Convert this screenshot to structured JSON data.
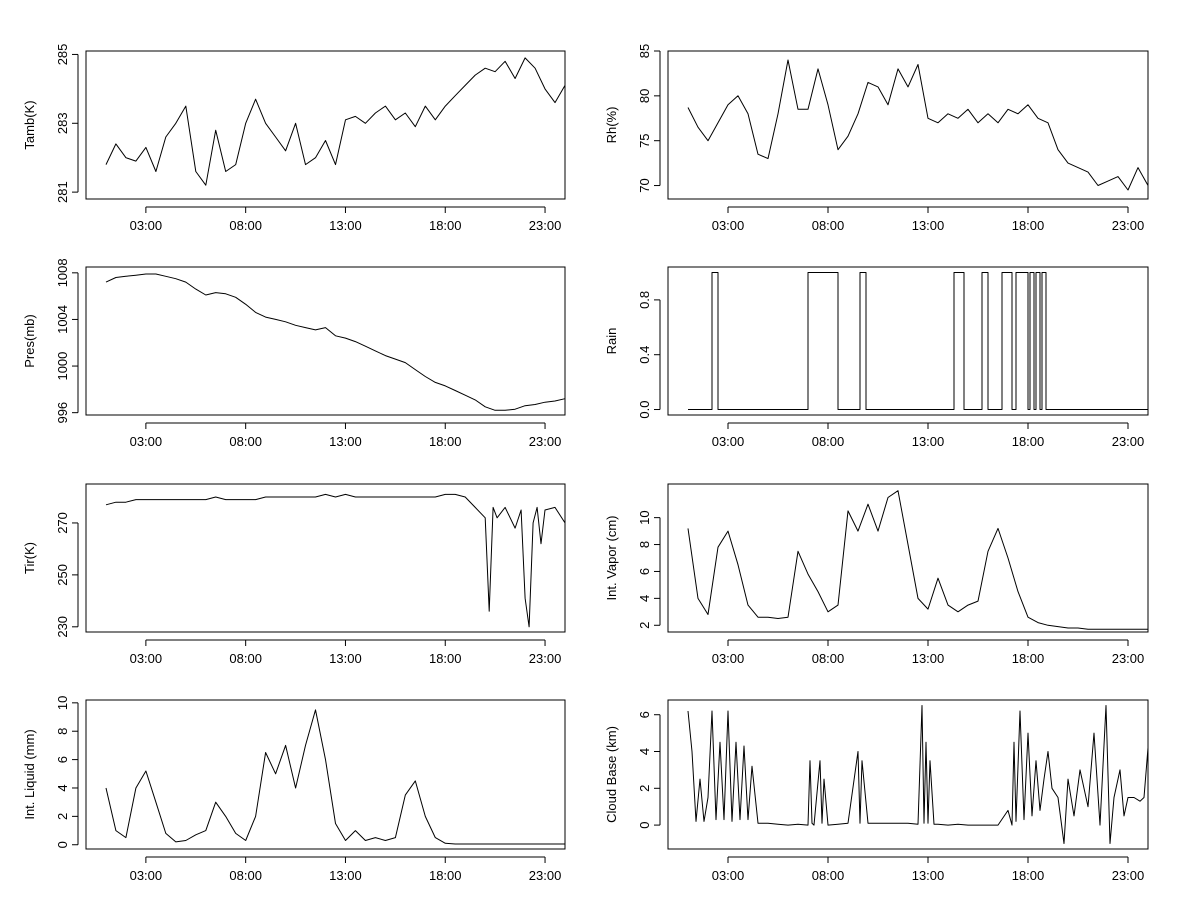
{
  "x_ticks": [
    "03:00",
    "08:00",
    "13:00",
    "18:00",
    "23:00"
  ],
  "chart_data": [
    {
      "type": "line",
      "ylabel": "Tamb(K)",
      "yticks": [
        "281",
        "283",
        "285"
      ],
      "xlim": [
        0,
        24
      ],
      "ylim": [
        280.8,
        285.1
      ],
      "x": [
        1.0,
        1.5,
        2.0,
        2.5,
        3.0,
        3.5,
        4.0,
        4.5,
        5.0,
        5.5,
        6.0,
        6.5,
        7.0,
        7.5,
        8.0,
        8.5,
        9.0,
        9.5,
        10.0,
        10.5,
        11.0,
        11.5,
        12.0,
        12.5,
        13.0,
        13.5,
        14.0,
        14.5,
        15.0,
        15.5,
        16.0,
        16.5,
        17.0,
        17.5,
        18.0,
        18.5,
        19.0,
        19.5,
        20.0,
        20.5,
        21.0,
        21.5,
        22.0,
        22.5,
        23.0,
        23.5,
        24.0
      ],
      "values": [
        281.8,
        282.4,
        282.0,
        281.9,
        282.3,
        281.6,
        282.6,
        283.0,
        283.5,
        281.6,
        281.2,
        282.8,
        281.6,
        281.8,
        283.0,
        283.7,
        283.0,
        282.6,
        282.2,
        283.0,
        281.8,
        282.0,
        282.5,
        281.8,
        283.1,
        283.2,
        283.0,
        283.3,
        283.5,
        283.1,
        283.3,
        282.9,
        283.5,
        283.1,
        283.5,
        283.8,
        284.1,
        284.4,
        284.6,
        284.5,
        284.8,
        284.3,
        284.9,
        284.6,
        284.0,
        283.6,
        284.1
      ]
    },
    {
      "type": "line",
      "ylabel": "Rh(%)",
      "yticks": [
        "70",
        "75",
        "80",
        "85"
      ],
      "xlim": [
        0,
        24
      ],
      "ylim": [
        68.5,
        85
      ],
      "x": [
        1.0,
        1.5,
        2.0,
        2.5,
        3.0,
        3.5,
        4.0,
        4.5,
        5.0,
        5.5,
        6.0,
        6.5,
        7.0,
        7.5,
        8.0,
        8.5,
        9.0,
        9.5,
        10.0,
        10.5,
        11.0,
        11.5,
        12.0,
        12.5,
        13.0,
        13.5,
        14.0,
        14.5,
        15.0,
        15.5,
        16.0,
        16.5,
        17.0,
        17.5,
        18.0,
        18.5,
        19.0,
        19.5,
        20.0,
        20.5,
        21.0,
        21.5,
        22.0,
        22.5,
        23.0,
        23.5,
        24.0
      ],
      "values": [
        78.7,
        76.5,
        75.0,
        77.0,
        79.0,
        80.0,
        78.0,
        73.5,
        73.0,
        78.0,
        84.0,
        78.5,
        78.5,
        83.0,
        79.0,
        74.0,
        75.5,
        78.0,
        81.5,
        81.0,
        79.0,
        83.0,
        81.0,
        83.5,
        77.5,
        77.0,
        78.0,
        77.5,
        78.5,
        77.0,
        78.0,
        77.0,
        78.5,
        78.0,
        79.0,
        77.5,
        77.0,
        74.0,
        72.5,
        72.0,
        71.5,
        70.0,
        70.5,
        71.0,
        69.5,
        72.0,
        70.0
      ]
    },
    {
      "type": "line",
      "ylabel": "Pres(mb)",
      "yticks": [
        "996",
        "1000",
        "1004",
        "1008"
      ],
      "xlim": [
        0,
        24
      ],
      "ylim": [
        995.8,
        1008.5
      ],
      "x": [
        1.0,
        1.5,
        2.0,
        2.5,
        3.0,
        3.5,
        4.0,
        4.5,
        5.0,
        5.5,
        6.0,
        6.5,
        7.0,
        7.5,
        8.0,
        8.5,
        9.0,
        9.5,
        10.0,
        10.5,
        11.0,
        11.5,
        12.0,
        12.5,
        13.0,
        13.5,
        14.0,
        14.5,
        15.0,
        15.5,
        16.0,
        16.5,
        17.0,
        17.5,
        18.0,
        18.5,
        19.0,
        19.5,
        20.0,
        20.5,
        21.0,
        21.5,
        22.0,
        22.5,
        23.0,
        23.5,
        24.0
      ],
      "values": [
        1007.2,
        1007.6,
        1007.7,
        1007.8,
        1007.9,
        1007.9,
        1007.7,
        1007.5,
        1007.2,
        1006.6,
        1006.1,
        1006.3,
        1006.2,
        1005.9,
        1005.3,
        1004.6,
        1004.2,
        1004.0,
        1003.8,
        1003.5,
        1003.3,
        1003.1,
        1003.3,
        1002.6,
        1002.4,
        1002.1,
        1001.7,
        1001.3,
        1000.9,
        1000.6,
        1000.3,
        999.7,
        999.1,
        998.6,
        998.3,
        997.9,
        997.5,
        997.1,
        996.5,
        996.2,
        996.2,
        996.3,
        996.6,
        996.7,
        996.9,
        997.0,
        997.2
      ]
    },
    {
      "type": "line",
      "ylabel": "Rain",
      "yticks": [
        "0.0",
        "0.4",
        "0.8"
      ],
      "xlim": [
        0,
        24
      ],
      "ylim": [
        -0.04,
        1.04
      ],
      "x": [
        1.0,
        2.2,
        2.2,
        2.5,
        2.5,
        7.0,
        7.0,
        8.5,
        8.5,
        9.6,
        9.6,
        9.9,
        9.9,
        10.3,
        10.3,
        14.3,
        14.3,
        14.8,
        14.8,
        15.7,
        15.7,
        16.0,
        16.0,
        16.7,
        16.7,
        17.2,
        17.2,
        17.4,
        17.4,
        18.0,
        18.0,
        18.1,
        18.1,
        18.3,
        18.3,
        18.4,
        18.4,
        18.6,
        18.6,
        18.7,
        18.7,
        18.9,
        18.9,
        24.0
      ],
      "values": [
        0,
        0,
        1,
        1,
        0,
        0,
        1,
        1,
        0,
        0,
        1,
        1,
        0,
        0,
        0,
        0,
        1,
        1,
        0,
        0,
        1,
        1,
        0,
        0,
        1,
        1,
        0,
        0,
        1,
        1,
        0,
        0,
        1,
        1,
        0,
        0,
        1,
        1,
        0,
        0,
        1,
        1,
        0,
        0
      ]
    },
    {
      "type": "line",
      "ylabel": "Tir(K)",
      "yticks": [
        "230",
        "250",
        "270"
      ],
      "xlim": [
        0,
        24
      ],
      "ylim": [
        228,
        285
      ],
      "x": [
        1.0,
        1.5,
        2.0,
        2.5,
        3.0,
        3.5,
        4.0,
        4.5,
        5.0,
        5.5,
        6.0,
        6.5,
        7.0,
        7.5,
        8.0,
        8.5,
        9.0,
        9.5,
        10.0,
        10.5,
        11.0,
        11.5,
        12.0,
        12.5,
        13.0,
        13.5,
        14.0,
        14.5,
        15.0,
        15.5,
        16.0,
        16.5,
        17.0,
        17.5,
        18.0,
        18.5,
        19.0,
        19.5,
        20.0,
        20.2,
        20.4,
        20.6,
        21.0,
        21.5,
        21.8,
        22.0,
        22.2,
        22.4,
        22.6,
        22.8,
        23.0,
        23.5,
        24.0
      ],
      "values": [
        277,
        278,
        278,
        279,
        279,
        279,
        279,
        279,
        279,
        279,
        279,
        280,
        279,
        279,
        279,
        279,
        280,
        280,
        280,
        280,
        280,
        280,
        281,
        280,
        281,
        280,
        280,
        280,
        280,
        280,
        280,
        280,
        280,
        280,
        281,
        281,
        280,
        276,
        272,
        236,
        276,
        272,
        276,
        268,
        275,
        241,
        230,
        270,
        276,
        262,
        275,
        276,
        270
      ]
    },
    {
      "type": "line",
      "ylabel": "Int. Vapor (cm)",
      "yticks": [
        "2",
        "4",
        "6",
        "8",
        "10"
      ],
      "xlim": [
        0,
        24
      ],
      "ylim": [
        1.5,
        12.5
      ],
      "x": [
        1.0,
        1.5,
        2.0,
        2.5,
        3.0,
        3.5,
        4.0,
        4.5,
        5.0,
        5.5,
        6.0,
        6.5,
        7.0,
        7.5,
        8.0,
        8.5,
        9.0,
        9.5,
        10.0,
        10.5,
        11.0,
        11.5,
        12.0,
        12.5,
        13.0,
        13.5,
        14.0,
        14.5,
        15.0,
        15.5,
        16.0,
        16.5,
        17.0,
        17.5,
        18.0,
        18.5,
        19.0,
        19.5,
        20.0,
        20.5,
        21.0,
        21.5,
        22.0,
        22.5,
        23.0,
        23.5,
        24.0
      ],
      "values": [
        9.2,
        4.0,
        2.8,
        7.8,
        9.0,
        6.5,
        3.5,
        2.6,
        2.6,
        2.5,
        2.6,
        7.5,
        5.8,
        4.5,
        3.0,
        3.5,
        10.5,
        9.0,
        11.0,
        9.0,
        11.5,
        12.0,
        8.0,
        4.0,
        3.2,
        5.5,
        3.5,
        3.0,
        3.5,
        3.8,
        7.5,
        9.2,
        7.0,
        4.5,
        2.6,
        2.2,
        2.0,
        1.9,
        1.8,
        1.8,
        1.7,
        1.7,
        1.7,
        1.7,
        1.7,
        1.7,
        1.7
      ]
    },
    {
      "type": "line",
      "ylabel": "Int. Liquid (mm)",
      "yticks": [
        "0",
        "2",
        "4",
        "6",
        "8",
        "10"
      ],
      "xlim": [
        0,
        24
      ],
      "ylim": [
        -0.3,
        10.2
      ],
      "x": [
        1.0,
        1.5,
        2.0,
        2.5,
        3.0,
        3.5,
        4.0,
        4.5,
        5.0,
        5.5,
        6.0,
        6.5,
        7.0,
        7.5,
        8.0,
        8.5,
        9.0,
        9.5,
        10.0,
        10.5,
        11.0,
        11.5,
        12.0,
        12.5,
        13.0,
        13.5,
        14.0,
        14.5,
        15.0,
        15.5,
        16.0,
        16.5,
        17.0,
        17.5,
        18.0,
        18.5,
        19.0,
        19.5,
        20.0,
        20.5,
        21.0,
        21.5,
        22.0,
        22.5,
        23.0,
        23.5,
        24.0
      ],
      "values": [
        4.0,
        1.0,
        0.5,
        4.0,
        5.2,
        3.0,
        0.8,
        0.2,
        0.3,
        0.7,
        1.0,
        3.0,
        2.0,
        0.8,
        0.3,
        2.0,
        6.5,
        5.0,
        7.0,
        4.0,
        7.0,
        9.5,
        6.0,
        1.5,
        0.3,
        1.0,
        0.3,
        0.5,
        0.3,
        0.5,
        3.5,
        4.5,
        2.0,
        0.5,
        0.1,
        0.05,
        0.05,
        0.05,
        0.05,
        0.05,
        0.05,
        0.05,
        0.05,
        0.05,
        0.05,
        0.05,
        0.05
      ]
    },
    {
      "type": "line",
      "ylabel": "Cloud Base (km)",
      "yticks": [
        "0",
        "2",
        "4",
        "6"
      ],
      "xlim": [
        0,
        24
      ],
      "ylim": [
        -1.3,
        6.8
      ],
      "x": [
        1.0,
        1.2,
        1.4,
        1.6,
        1.8,
        2.0,
        2.2,
        2.4,
        2.6,
        2.8,
        3.0,
        3.2,
        3.4,
        3.6,
        3.8,
        4.0,
        4.2,
        4.5,
        5.0,
        5.5,
        6.0,
        6.5,
        7.0,
        7.1,
        7.2,
        7.3,
        7.6,
        7.7,
        7.8,
        8.0,
        8.5,
        9.0,
        9.5,
        9.6,
        9.7,
        10.0,
        10.5,
        11.0,
        11.5,
        12.0,
        12.5,
        12.7,
        12.8,
        12.9,
        13.0,
        13.1,
        13.3,
        13.5,
        14.0,
        14.5,
        15.0,
        15.5,
        16.0,
        16.5,
        17.0,
        17.2,
        17.3,
        17.4,
        17.6,
        17.8,
        18.0,
        18.2,
        18.4,
        18.6,
        18.8,
        19.0,
        19.2,
        19.5,
        19.8,
        20.0,
        20.3,
        20.6,
        21.0,
        21.3,
        21.6,
        21.9,
        22.1,
        22.3,
        22.6,
        22.8,
        23.0,
        23.3,
        23.6,
        23.8,
        24.0
      ],
      "values": [
        6.2,
        4.0,
        0.2,
        2.5,
        0.2,
        1.5,
        6.2,
        0.3,
        4.5,
        0.3,
        6.2,
        0.2,
        4.5,
        0.3,
        4.3,
        0.3,
        3.2,
        0.1,
        0.1,
        0.05,
        0.0,
        0.05,
        0.0,
        3.5,
        0.1,
        0.0,
        3.5,
        0.1,
        2.5,
        0.0,
        0.05,
        0.1,
        4.0,
        0.1,
        3.5,
        0.1,
        0.1,
        0.1,
        0.1,
        0.1,
        0.05,
        6.5,
        0.1,
        4.5,
        0.1,
        3.5,
        0.05,
        0.05,
        0.0,
        0.05,
        0.0,
        0.0,
        0.0,
        0.0,
        0.8,
        0.0,
        4.5,
        0.2,
        6.2,
        0.3,
        5.0,
        0.5,
        3.5,
        0.8,
        2.5,
        4.0,
        2.0,
        1.5,
        -1.0,
        2.5,
        0.5,
        3.0,
        1.0,
        5.0,
        0.0,
        6.5,
        -1.0,
        1.5,
        3.0,
        0.5,
        1.5,
        1.5,
        1.3,
        1.5,
        4.2
      ]
    }
  ]
}
